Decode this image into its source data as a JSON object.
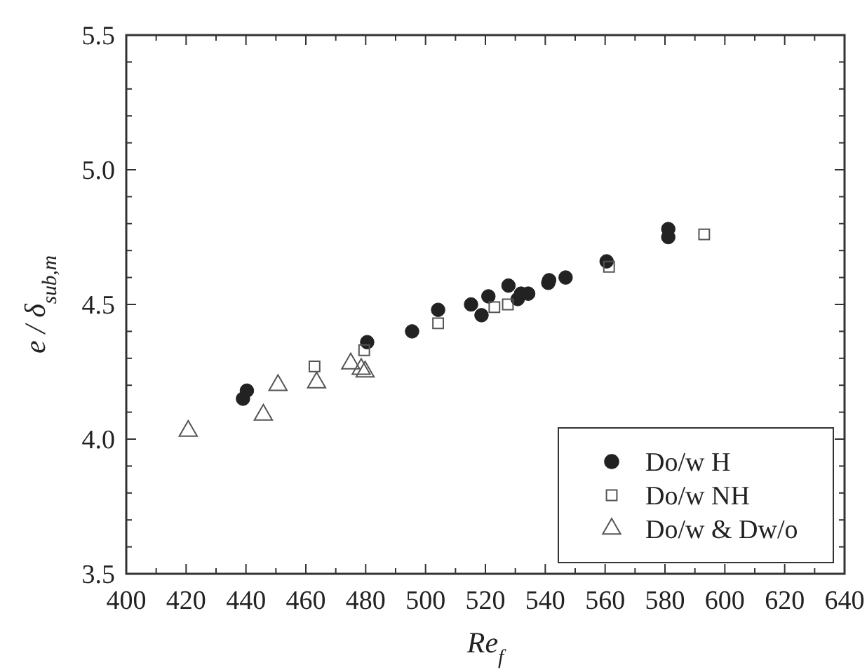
{
  "chart_data": {
    "type": "scatter",
    "xlabel": "Re$_{f}$",
    "ylabel": "e / δ$_{sub,m}$",
    "xlim": [
      400,
      640
    ],
    "ylim": [
      3.5,
      5.5
    ],
    "xticks": [
      400,
      {
        "value": 410,
        "label": null
      },
      420,
      {
        "value": 430,
        "label": null
      },
      440,
      {
        "value": 450,
        "label": null
      },
      460,
      {
        "value": 470,
        "label": null
      },
      480,
      {
        "value": 490,
        "label": null
      },
      500,
      {
        "value": 510,
        "label": null
      },
      520,
      {
        "value": 530,
        "label": null
      },
      540,
      {
        "value": 550,
        "label": null
      },
      560,
      {
        "value": 570,
        "label": null
      },
      580,
      {
        "value": 590,
        "label": null
      },
      600,
      {
        "value": 610,
        "label": null
      },
      620,
      {
        "value": 630,
        "label": null
      },
      640
    ],
    "yticks": [
      3.5,
      {
        "value": 3.6,
        "label": null
      },
      {
        "value": 3.7,
        "label": null
      },
      {
        "value": 3.8,
        "label": null
      },
      {
        "value": 3.9,
        "label": null
      },
      {
        "value": 4,
        "label": "4.0"
      },
      {
        "value": 4.1,
        "label": null
      },
      {
        "value": 4.2,
        "label": null
      },
      {
        "value": 4.3,
        "label": null
      },
      {
        "value": 4.4,
        "label": null
      },
      4.5,
      {
        "value": 4.6,
        "label": null
      },
      {
        "value": 4.7,
        "label": null
      },
      {
        "value": 4.8,
        "label": null
      },
      {
        "value": 4.9,
        "label": null
      },
      {
        "value": 5,
        "label": "5.0"
      },
      {
        "value": 5.1,
        "label": null
      },
      {
        "value": 5.2,
        "label": null
      },
      {
        "value": 5.3,
        "label": null
      },
      {
        "value": 5.4,
        "label": null
      },
      5.5
    ],
    "grid": false,
    "legend": "bottom right",
    "series": [
      {
        "name": "Do/w H",
        "color": "#222222",
        "marker": "circle",
        "x": [
          439.0,
          440.3,
          480.5,
          495.5,
          504.2,
          515.2,
          518.7,
          521.0,
          527.7,
          530.8,
          531.9,
          534.3,
          541.0,
          541.3,
          546.8,
          560.5,
          581.1,
          581.1
        ],
        "values": [
          4.15,
          4.18,
          4.36,
          4.4,
          4.48,
          4.5,
          4.46,
          4.53,
          4.57,
          4.52,
          4.54,
          4.54,
          4.58,
          4.59,
          4.6,
          4.66,
          4.75,
          4.78
        ]
      },
      {
        "name": "Do/w NH",
        "color": "#555555",
        "marker": "square",
        "x": [
          462.9,
          479.5,
          504.2,
          523.0,
          527.5,
          561.3,
          593.1
        ],
        "values": [
          4.27,
          4.33,
          4.43,
          4.49,
          4.5,
          4.64,
          4.76
        ]
      },
      {
        "name": "Do/w & Dw/o",
        "color": "#555555",
        "marker": "triangle",
        "x": [
          420.7,
          445.8,
          450.7,
          463.6,
          475.0,
          478.5,
          479.8
        ],
        "values": [
          4.03,
          4.09,
          4.2,
          4.21,
          4.28,
          4.26,
          4.25
        ]
      }
    ]
  }
}
